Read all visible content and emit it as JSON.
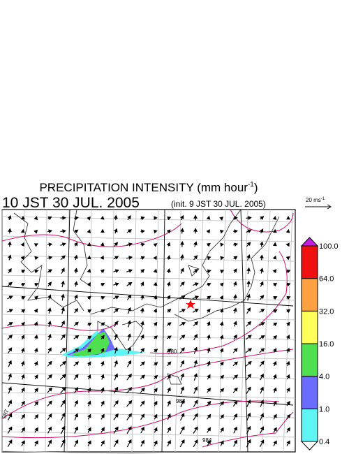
{
  "header": {
    "title": "PRECIPITATION INTENSITY (mm hour",
    "title_sup": "-1",
    "title_end": ")",
    "valid_time": "10 JST 30 JUL. 2005",
    "init_time": "(init. 9 JST 30 JUL. 2005)"
  },
  "reference_vector": {
    "label": "20 ms",
    "label_sup": "-1"
  },
  "contour_labels": [
    "980",
    "983",
    "984",
    "987"
  ],
  "colorbar": {
    "levels": [
      0.4,
      {
        "value": 1,
        "label": "1.0"
      },
      {
        "value": 4,
        "label": "4.0"
      },
      {
        "value": 16,
        "label": "16.0"
      },
      {
        "value": 32,
        "label": "32.0"
      },
      {
        "value": 64,
        "label": "64.0"
      },
      {
        "value": 100,
        "label": "100.0"
      }
    ],
    "colors": [
      "#5ff5f5",
      "#6b6bff",
      "#4fe04f",
      "#ffff5a",
      "#ffa040",
      "#f01010"
    ],
    "over_color": "#c020e0",
    "under_color": "#ffffff"
  }
}
